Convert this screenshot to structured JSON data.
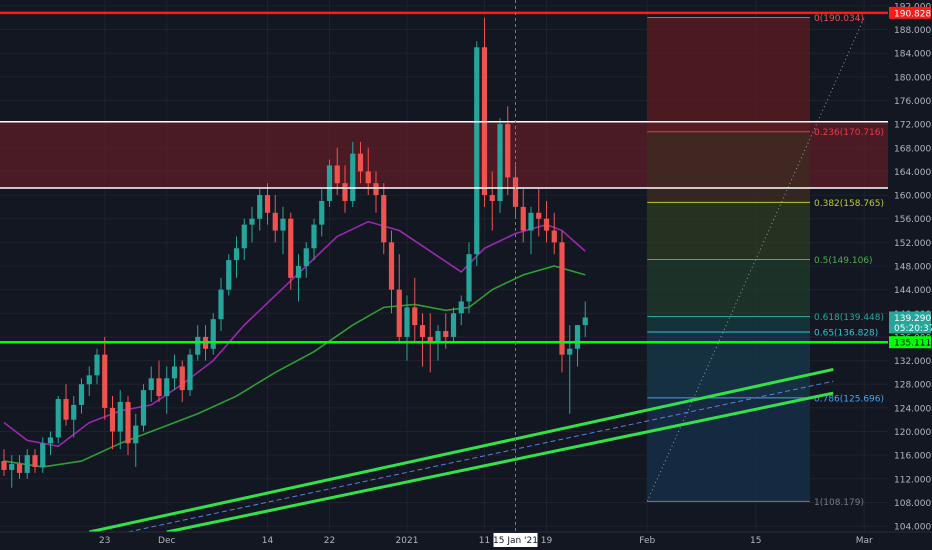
{
  "chart_data": {
    "type": "candlestick",
    "title": "",
    "xlabel": "",
    "ylabel": "",
    "ylim": [
      103,
      193
    ],
    "y_ticks": [
      "104.000",
      "108.000",
      "112.000",
      "116.000",
      "120.000",
      "124.000",
      "128.000",
      "132.000",
      "136.000",
      "140.000",
      "144.000",
      "148.000",
      "152.000",
      "156.000",
      "160.000",
      "164.000",
      "168.000",
      "172.000",
      "176.000",
      "180.000",
      "184.000",
      "188.000",
      "192.000"
    ],
    "x_tick_labels": [
      {
        "label": "23",
        "date": "2020-11-23"
      },
      {
        "label": "Dec",
        "date": "2020-12-01"
      },
      {
        "label": "14",
        "date": "2020-12-14"
      },
      {
        "label": "22",
        "date": "2020-12-22"
      },
      {
        "label": "2021",
        "date": "2021-01-01"
      },
      {
        "label": "11",
        "date": "2021-01-11"
      },
      {
        "label": "19",
        "date": "2021-01-19"
      },
      {
        "label": "Feb",
        "date": "2021-02-01"
      },
      {
        "label": "15",
        "date": "2021-02-15"
      },
      {
        "label": "Mar",
        "date": "2021-03-01"
      }
    ],
    "crosshair_date_label": "15 Jan '21",
    "crosshair_date": "2021-01-15",
    "grid": true,
    "colors": {
      "background": "#131722",
      "grid": "#1e222d",
      "up": "#26a69a",
      "down": "#ef5350",
      "text": "#b2b5be",
      "ma_fast": "#9c27b0",
      "ma_slow": "#2e9e35",
      "support": "#00ff00",
      "channel": "#33e14a",
      "top_line": "#ff1a1a"
    },
    "candles": [
      {
        "date": "2020-11-10",
        "o": 115,
        "h": 117,
        "l": 112.5,
        "c": 113.5
      },
      {
        "date": "2020-11-11",
        "o": 113.5,
        "h": 116,
        "l": 110.5,
        "c": 114.5
      },
      {
        "date": "2020-11-12",
        "o": 114.5,
        "h": 116,
        "l": 112,
        "c": 113
      },
      {
        "date": "2020-11-13",
        "o": 113,
        "h": 117,
        "l": 112,
        "c": 116
      },
      {
        "date": "2020-11-14",
        "o": 116,
        "h": 117,
        "l": 113,
        "c": 114
      },
      {
        "date": "2020-11-15",
        "o": 114,
        "h": 119,
        "l": 113,
        "c": 118
      },
      {
        "date": "2020-11-16",
        "o": 118,
        "h": 120,
        "l": 116,
        "c": 119
      },
      {
        "date": "2020-11-17",
        "o": 119,
        "h": 126,
        "l": 118,
        "c": 125.5
      },
      {
        "date": "2020-11-18",
        "o": 125.5,
        "h": 128,
        "l": 121,
        "c": 122
      },
      {
        "date": "2020-11-19",
        "o": 122,
        "h": 126,
        "l": 119,
        "c": 124.5
      },
      {
        "date": "2020-11-20",
        "o": 124.5,
        "h": 129,
        "l": 123,
        "c": 128
      },
      {
        "date": "2020-11-21",
        "o": 128,
        "h": 131,
        "l": 126,
        "c": 129.5
      },
      {
        "date": "2020-11-22",
        "o": 129.5,
        "h": 134,
        "l": 128,
        "c": 133
      },
      {
        "date": "2020-11-23",
        "o": 133,
        "h": 136,
        "l": 122,
        "c": 124
      },
      {
        "date": "2020-11-24",
        "o": 124,
        "h": 126,
        "l": 117,
        "c": 120
      },
      {
        "date": "2020-11-25",
        "o": 120,
        "h": 127,
        "l": 117,
        "c": 125
      },
      {
        "date": "2020-11-26",
        "o": 125,
        "h": 126,
        "l": 116,
        "c": 118
      },
      {
        "date": "2020-11-27",
        "o": 118,
        "h": 123,
        "l": 114,
        "c": 121
      },
      {
        "date": "2020-11-28",
        "o": 121,
        "h": 128,
        "l": 120,
        "c": 127
      },
      {
        "date": "2020-11-29",
        "o": 127,
        "h": 131,
        "l": 125,
        "c": 129
      },
      {
        "date": "2020-11-30",
        "o": 129,
        "h": 132,
        "l": 125,
        "c": 126
      },
      {
        "date": "2020-12-01",
        "o": 126,
        "h": 131,
        "l": 123,
        "c": 129
      },
      {
        "date": "2020-12-02",
        "o": 129,
        "h": 133,
        "l": 127,
        "c": 131
      },
      {
        "date": "2020-12-03",
        "o": 131,
        "h": 132,
        "l": 125,
        "c": 127
      },
      {
        "date": "2020-12-04",
        "o": 127,
        "h": 134,
        "l": 126,
        "c": 133
      },
      {
        "date": "2020-12-05",
        "o": 133,
        "h": 138,
        "l": 132,
        "c": 136
      },
      {
        "date": "2020-12-06",
        "o": 136,
        "h": 138,
        "l": 132,
        "c": 134
      },
      {
        "date": "2020-12-07",
        "o": 134,
        "h": 140,
        "l": 133,
        "c": 139
      },
      {
        "date": "2020-12-08",
        "o": 139,
        "h": 146,
        "l": 137,
        "c": 144
      },
      {
        "date": "2020-12-09",
        "o": 144,
        "h": 150,
        "l": 143,
        "c": 149
      },
      {
        "date": "2020-12-10",
        "o": 149,
        "h": 153,
        "l": 146,
        "c": 151
      },
      {
        "date": "2020-12-11",
        "o": 151,
        "h": 156,
        "l": 149,
        "c": 155
      },
      {
        "date": "2020-12-12",
        "o": 155,
        "h": 158,
        "l": 152,
        "c": 156
      },
      {
        "date": "2020-12-13",
        "o": 156,
        "h": 161,
        "l": 154,
        "c": 160
      },
      {
        "date": "2020-12-14",
        "o": 160,
        "h": 162,
        "l": 155,
        "c": 157
      },
      {
        "date": "2020-12-15",
        "o": 157,
        "h": 160,
        "l": 152,
        "c": 154
      },
      {
        "date": "2020-12-16",
        "o": 154,
        "h": 158,
        "l": 150,
        "c": 156
      },
      {
        "date": "2020-12-17",
        "o": 156,
        "h": 157,
        "l": 144,
        "c": 146
      },
      {
        "date": "2020-12-18",
        "o": 146,
        "h": 150,
        "l": 142,
        "c": 148
      },
      {
        "date": "2020-12-19",
        "o": 148,
        "h": 152,
        "l": 146,
        "c": 151
      },
      {
        "date": "2020-12-20",
        "o": 151,
        "h": 156,
        "l": 149,
        "c": 155
      },
      {
        "date": "2020-12-21",
        "o": 155,
        "h": 161,
        "l": 153,
        "c": 159
      },
      {
        "date": "2020-12-22",
        "o": 159,
        "h": 166,
        "l": 158,
        "c": 165
      },
      {
        "date": "2020-12-23",
        "o": 165,
        "h": 168,
        "l": 160,
        "c": 162
      },
      {
        "date": "2020-12-24",
        "o": 162,
        "h": 165,
        "l": 157,
        "c": 159
      },
      {
        "date": "2020-12-25",
        "o": 159,
        "h": 169,
        "l": 158,
        "c": 167
      },
      {
        "date": "2020-12-26",
        "o": 167,
        "h": 169,
        "l": 162,
        "c": 164
      },
      {
        "date": "2020-12-27",
        "o": 164,
        "h": 168,
        "l": 160,
        "c": 162
      },
      {
        "date": "2020-12-28",
        "o": 162,
        "h": 164,
        "l": 157,
        "c": 160
      },
      {
        "date": "2020-12-29",
        "o": 160,
        "h": 162,
        "l": 150,
        "c": 152
      },
      {
        "date": "2020-12-30",
        "o": 152,
        "h": 154,
        "l": 140,
        "c": 144
      },
      {
        "date": "2020-12-31",
        "o": 144,
        "h": 150,
        "l": 135,
        "c": 136
      },
      {
        "date": "2021-01-01",
        "o": 136,
        "h": 143,
        "l": 132,
        "c": 141
      },
      {
        "date": "2021-01-02",
        "o": 141,
        "h": 146,
        "l": 135,
        "c": 138
      },
      {
        "date": "2021-01-03",
        "o": 138,
        "h": 140,
        "l": 131,
        "c": 136
      },
      {
        "date": "2021-01-04",
        "o": 136,
        "h": 140,
        "l": 130,
        "c": 135
      },
      {
        "date": "2021-01-05",
        "o": 135,
        "h": 138,
        "l": 132,
        "c": 137
      },
      {
        "date": "2021-01-06",
        "o": 137,
        "h": 140,
        "l": 134,
        "c": 136
      },
      {
        "date": "2021-01-07",
        "o": 136,
        "h": 141,
        "l": 135,
        "c": 140
      },
      {
        "date": "2021-01-08",
        "o": 140,
        "h": 143,
        "l": 138,
        "c": 142
      },
      {
        "date": "2021-01-09",
        "o": 142,
        "h": 152,
        "l": 140,
        "c": 150
      },
      {
        "date": "2021-01-10",
        "o": 150,
        "h": 186,
        "l": 148,
        "c": 185
      },
      {
        "date": "2021-01-11",
        "o": 185,
        "h": 190,
        "l": 158,
        "c": 160
      },
      {
        "date": "2021-01-12",
        "o": 160,
        "h": 164,
        "l": 154,
        "c": 159
      },
      {
        "date": "2021-01-13",
        "o": 159,
        "h": 173,
        "l": 157,
        "c": 172
      },
      {
        "date": "2021-01-14",
        "o": 172,
        "h": 175,
        "l": 160,
        "c": 163
      },
      {
        "date": "2021-01-15",
        "o": 163,
        "h": 165,
        "l": 156,
        "c": 158
      },
      {
        "date": "2021-01-16",
        "o": 158,
        "h": 161,
        "l": 152,
        "c": 154
      },
      {
        "date": "2021-01-17",
        "o": 154,
        "h": 158,
        "l": 150,
        "c": 157
      },
      {
        "date": "2021-01-18",
        "o": 157,
        "h": 161,
        "l": 153,
        "c": 156
      },
      {
        "date": "2021-01-19",
        "o": 156,
        "h": 159,
        "l": 152,
        "c": 154
      },
      {
        "date": "2021-01-20",
        "o": 154,
        "h": 157,
        "l": 150,
        "c": 152
      },
      {
        "date": "2021-01-21",
        "o": 152,
        "h": 154,
        "l": 130,
        "c": 133
      },
      {
        "date": "2021-01-22",
        "o": 133,
        "h": 138,
        "l": 123,
        "c": 134
      },
      {
        "date": "2021-01-23",
        "o": 134,
        "h": 138,
        "l": 131,
        "c": 138
      },
      {
        "date": "2021-01-24",
        "o": 138,
        "h": 142,
        "l": 136,
        "c": 139.29
      }
    ],
    "ma_fast": [
      {
        "date": "2020-11-10",
        "v": 121.5
      },
      {
        "date": "2020-11-13",
        "v": 118.5
      },
      {
        "date": "2020-11-17",
        "v": 117.5
      },
      {
        "date": "2020-11-21",
        "v": 121.5
      },
      {
        "date": "2020-11-25",
        "v": 123.5
      },
      {
        "date": "2020-11-29",
        "v": 124.5
      },
      {
        "date": "2020-12-03",
        "v": 128
      },
      {
        "date": "2020-12-07",
        "v": 132
      },
      {
        "date": "2020-12-11",
        "v": 138
      },
      {
        "date": "2020-12-15",
        "v": 143
      },
      {
        "date": "2020-12-19",
        "v": 148
      },
      {
        "date": "2020-12-23",
        "v": 153
      },
      {
        "date": "2020-12-27",
        "v": 155.5
      },
      {
        "date": "2020-12-31",
        "v": 154
      },
      {
        "date": "2021-01-04",
        "v": 150.5
      },
      {
        "date": "2021-01-08",
        "v": 147
      },
      {
        "date": "2021-01-11",
        "v": 151
      },
      {
        "date": "2021-01-15",
        "v": 153.5
      },
      {
        "date": "2021-01-19",
        "v": 155
      },
      {
        "date": "2021-01-21",
        "v": 154
      },
      {
        "date": "2021-01-24",
        "v": 150.5
      }
    ],
    "ma_slow": [
      {
        "date": "2020-11-10",
        "v": 115
      },
      {
        "date": "2020-11-15",
        "v": 114
      },
      {
        "date": "2020-11-20",
        "v": 115
      },
      {
        "date": "2020-11-25",
        "v": 118
      },
      {
        "date": "2020-11-30",
        "v": 120.5
      },
      {
        "date": "2020-12-05",
        "v": 123
      },
      {
        "date": "2020-12-10",
        "v": 126
      },
      {
        "date": "2020-12-15",
        "v": 130
      },
      {
        "date": "2020-12-20",
        "v": 133.5
      },
      {
        "date": "2020-12-25",
        "v": 138
      },
      {
        "date": "2020-12-29",
        "v": 141
      },
      {
        "date": "2021-01-02",
        "v": 141.5
      },
      {
        "date": "2021-01-06",
        "v": 140.5
      },
      {
        "date": "2021-01-09",
        "v": 141
      },
      {
        "date": "2021-01-12",
        "v": 144
      },
      {
        "date": "2021-01-16",
        "v": 146.5
      },
      {
        "date": "2021-01-20",
        "v": 148
      },
      {
        "date": "2021-01-24",
        "v": 146.5
      }
    ],
    "horizontal_lines": [
      {
        "value": 190.828,
        "label": "190.828",
        "color": "#ff1a1a"
      },
      {
        "value": 172.4,
        "color": "#ffffff"
      },
      {
        "value": 161.2,
        "color": "#ffffff"
      },
      {
        "value": 135.111,
        "label": "135.111",
        "color": "#00ff00"
      }
    ],
    "resistance_zone": [
      161.2,
      172.4
    ],
    "price_tags": [
      {
        "value": 139.29,
        "text": "139.290",
        "color": "#26a69a"
      },
      {
        "value": 137.6,
        "text": "05:20:37",
        "color": "#26a69a"
      }
    ],
    "fibonacci": {
      "start_date": "2021-02-01",
      "end_date": "2021-02-22",
      "levels": [
        {
          "ratio": "0",
          "price": 190.034,
          "text": "0(190.034)",
          "color": "#ef5350"
        },
        {
          "ratio": "0.236",
          "price": 170.716,
          "text": "0.236(170.716)",
          "color": "#f23645"
        },
        {
          "ratio": "0.382",
          "price": 158.765,
          "text": "0.382(158.765)",
          "color": "#c0ca33"
        },
        {
          "ratio": "0.5",
          "price": 149.106,
          "text": "0.5(149.106)",
          "color": "#4caf50"
        },
        {
          "ratio": "0.618",
          "price": 139.448,
          "text": "0.618(139.448)",
          "color": "#26a69a"
        },
        {
          "ratio": "0.65",
          "price": 136.828,
          "text": "0.65(136.828)",
          "color": "#26c6da"
        },
        {
          "ratio": "0.786",
          "price": 125.696,
          "text": "0.786(125.696)",
          "color": "#42a5f5"
        },
        {
          "ratio": "1",
          "price": 108.179,
          "text": "1(108.179)",
          "color": "#787b86"
        }
      ]
    },
    "trend_channel": {
      "upper": [
        {
          "date": "2020-11-21",
          "v": 103
        },
        {
          "date": "2021-02-25",
          "v": 130.5
        }
      ],
      "lower": [
        {
          "date": "2020-12-01",
          "v": 103
        },
        {
          "date": "2021-02-25",
          "v": 126.5
        }
      ],
      "mid": [
        {
          "date": "2020-11-26",
          "v": 103
        },
        {
          "date": "2021-02-25",
          "v": 128.5
        }
      ]
    },
    "diagonal_dotted": [
      {
        "date": "2021-02-01",
        "v": 108.2
      },
      {
        "date": "2021-03-01",
        "v": 190
      }
    ]
  }
}
